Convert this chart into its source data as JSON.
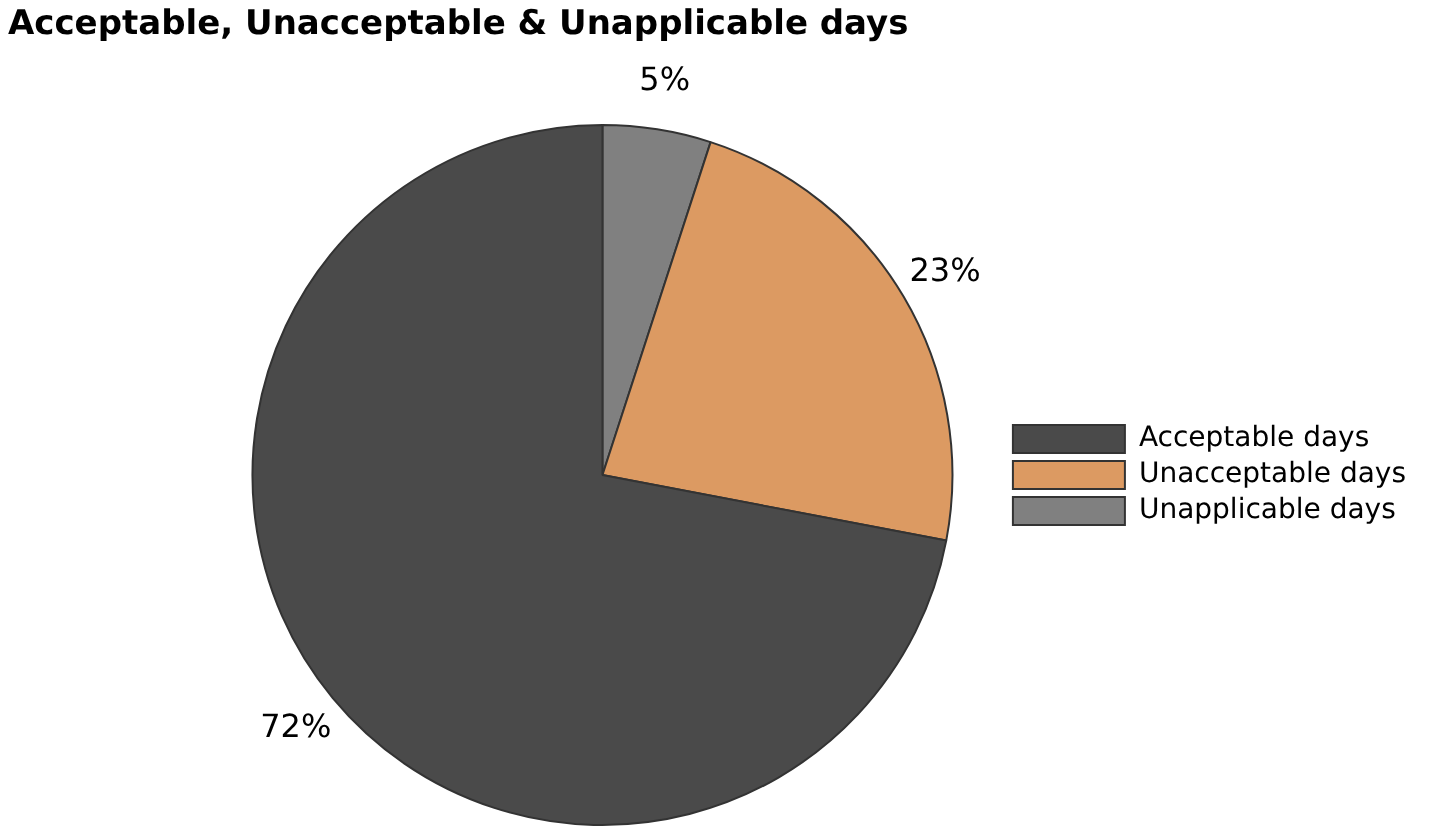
{
  "chart_data": {
    "type": "pie",
    "title": "Acceptable, Unacceptable & Unapplicable days",
    "categories": [
      "Acceptable days",
      "Unacceptable days",
      "Unapplicable days"
    ],
    "values": [
      72,
      23,
      5
    ],
    "colors": [
      "#4a4a4a",
      "#dc9a62",
      "#808080"
    ],
    "value_labels": [
      "72%",
      "23%",
      "5%"
    ],
    "legend": "right"
  }
}
